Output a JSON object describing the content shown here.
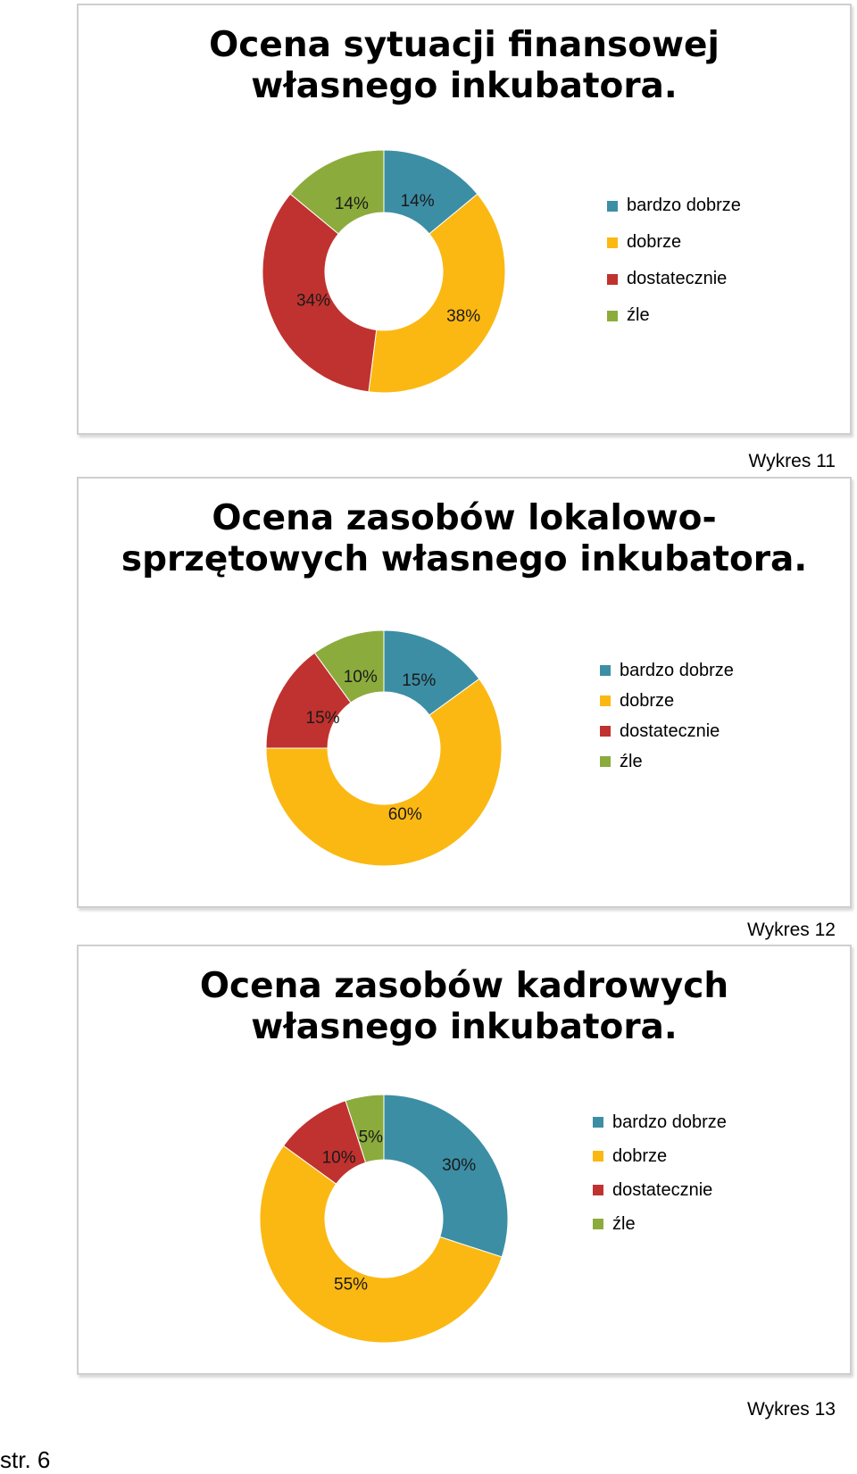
{
  "chart_data": [
    {
      "type": "donut",
      "title_lines": [
        "Ocena sytuacji finansowej",
        "własnego inkubatora."
      ],
      "categories": [
        "bardzo dobrze",
        "dobrze",
        "dostatecznie",
        "źle"
      ],
      "values": [
        14,
        38,
        34,
        14
      ],
      "value_labels": [
        "14%",
        "38%",
        "34%",
        "14%"
      ],
      "colors": [
        "#3c8ea5",
        "#fbb812",
        "#c0322f",
        "#8bac3c"
      ],
      "legend_position": "right",
      "caption": "Wykres 11"
    },
    {
      "type": "donut",
      "title_lines": [
        "Ocena zasobów lokalowo-",
        "sprzętowych własnego inkubatora."
      ],
      "categories": [
        "bardzo dobrze",
        "dobrze",
        "dostatecznie",
        "źle"
      ],
      "values": [
        15,
        60,
        15,
        10
      ],
      "value_labels": [
        "15%",
        "60%",
        "15%",
        "10%"
      ],
      "colors": [
        "#3c8ea5",
        "#fbb812",
        "#c0322f",
        "#8bac3c"
      ],
      "legend_position": "right",
      "caption": "Wykres 12"
    },
    {
      "type": "donut",
      "title_lines": [
        "Ocena zasobów kadrowych",
        "własnego inkubatora."
      ],
      "categories": [
        "bardzo dobrze",
        "dobrze",
        "dostatecznie",
        "źle"
      ],
      "values": [
        30,
        55,
        10,
        5
      ],
      "value_labels": [
        "30%",
        "55%",
        "10%",
        "5%"
      ],
      "colors": [
        "#3c8ea5",
        "#fbb812",
        "#c0322f",
        "#8bac3c"
      ],
      "legend_position": "right",
      "caption": "Wykres 13"
    }
  ],
  "page": {
    "number_label": "str. 6"
  }
}
